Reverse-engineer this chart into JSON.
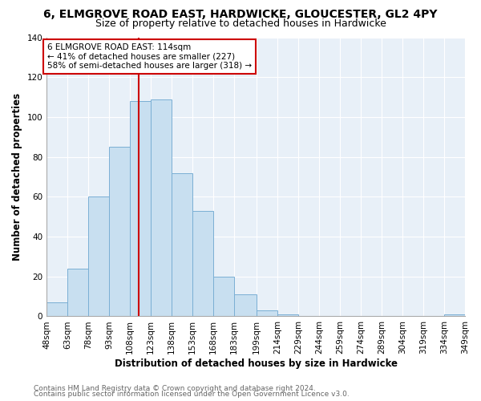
{
  "title": "6, ELMGROVE ROAD EAST, HARDWICKE, GLOUCESTER, GL2 4PY",
  "subtitle": "Size of property relative to detached houses in Hardwicke",
  "xlabel": "Distribution of detached houses by size in Hardwicke",
  "ylabel": "Number of detached properties",
  "bar_edges": [
    48,
    63,
    78,
    93,
    108,
    123,
    138,
    153,
    168,
    183,
    199,
    214,
    229,
    244,
    259,
    274,
    289,
    304,
    319,
    334,
    349
  ],
  "bar_heights": [
    7,
    24,
    60,
    85,
    108,
    109,
    72,
    53,
    20,
    11,
    3,
    1,
    0,
    0,
    0,
    0,
    0,
    0,
    0,
    1
  ],
  "bar_color": "#c8dff0",
  "bar_edge_color": "#7aafd4",
  "vline_x": 114,
  "vline_color": "#cc0000",
  "annotation_text": "6 ELMGROVE ROAD EAST: 114sqm\n← 41% of detached houses are smaller (227)\n58% of semi-detached houses are larger (318) →",
  "annotation_box_color": "white",
  "annotation_box_edgecolor": "#cc0000",
  "ylim": [
    0,
    140
  ],
  "footer_line1": "Contains HM Land Registry data © Crown copyright and database right 2024.",
  "footer_line2": "Contains public sector information licensed under the Open Government Licence v3.0.",
  "tick_labels": [
    "48sqm",
    "63sqm",
    "78sqm",
    "93sqm",
    "108sqm",
    "123sqm",
    "138sqm",
    "153sqm",
    "168sqm",
    "183sqm",
    "199sqm",
    "214sqm",
    "229sqm",
    "244sqm",
    "259sqm",
    "274sqm",
    "289sqm",
    "304sqm",
    "319sqm",
    "334sqm",
    "349sqm"
  ],
  "background_color": "#ffffff",
  "plot_bg_color": "#e8f0f8",
  "grid_color": "#ffffff",
  "yticks": [
    0,
    20,
    40,
    60,
    80,
    100,
    120,
    140
  ],
  "title_fontsize": 10,
  "subtitle_fontsize": 9,
  "axis_label_fontsize": 8.5,
  "tick_fontsize": 7.5
}
